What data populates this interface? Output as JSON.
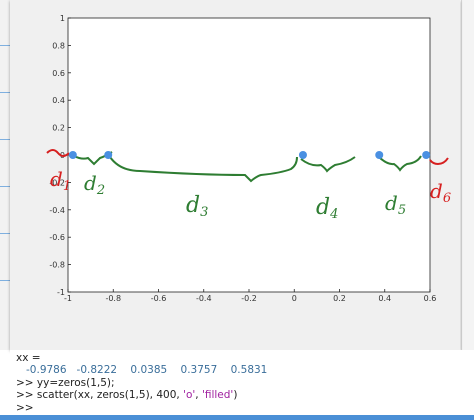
{
  "chart_data": {
    "type": "scatter",
    "x": [
      -0.9786,
      -0.8222,
      0.0385,
      0.3757,
      0.5831
    ],
    "y": [
      0,
      0,
      0,
      0,
      0
    ],
    "xlim": [
      -1,
      0.6
    ],
    "ylim": [
      -1,
      1
    ],
    "xticks": [
      -1,
      -0.8,
      -0.6,
      -0.4,
      -0.2,
      0,
      0.2,
      0.4,
      0.6
    ],
    "yticks": [
      -1,
      -0.8,
      -0.6,
      -0.4,
      -0.2,
      0,
      0.2,
      0.4,
      0.6,
      0.8,
      1
    ],
    "xtick_labels": [
      "-1",
      "-0.8",
      "-0.6",
      "-0.4",
      "-0.2",
      "0",
      "0.2",
      "0.4",
      "0.6"
    ],
    "ytick_labels": [
      "-1",
      "-0.8",
      "-0.6",
      "-0.4",
      "-0.2",
      "0",
      "0.2",
      "0.4",
      "0.6",
      "0.8",
      "1"
    ],
    "marker_color": "#4a90e2",
    "grid": false,
    "annotations": [
      {
        "text": "d1",
        "color": "#d62020"
      },
      {
        "text": "d2",
        "color": "#2e7d32"
      },
      {
        "text": "d3",
        "color": "#2e7d32"
      },
      {
        "text": "d4",
        "color": "#2e7d32"
      },
      {
        "text": "d5",
        "color": "#2e7d32"
      },
      {
        "text": "d6",
        "color": "#d62020"
      }
    ]
  },
  "console": {
    "lines": [
      {
        "text": "xx =",
        "style": ""
      },
      {
        "text": "   -0.9786   -0.8222    0.0385    0.3757    0.5831",
        "style": "vals"
      },
      {
        "text": ">> yy=zeros(1,5);",
        "style": ""
      },
      {
        "text": ">> scatter(xx, zeros(1,5), 400, 'o', 'filled')",
        "style": ""
      },
      {
        "text": ">>",
        "style": ""
      }
    ]
  }
}
